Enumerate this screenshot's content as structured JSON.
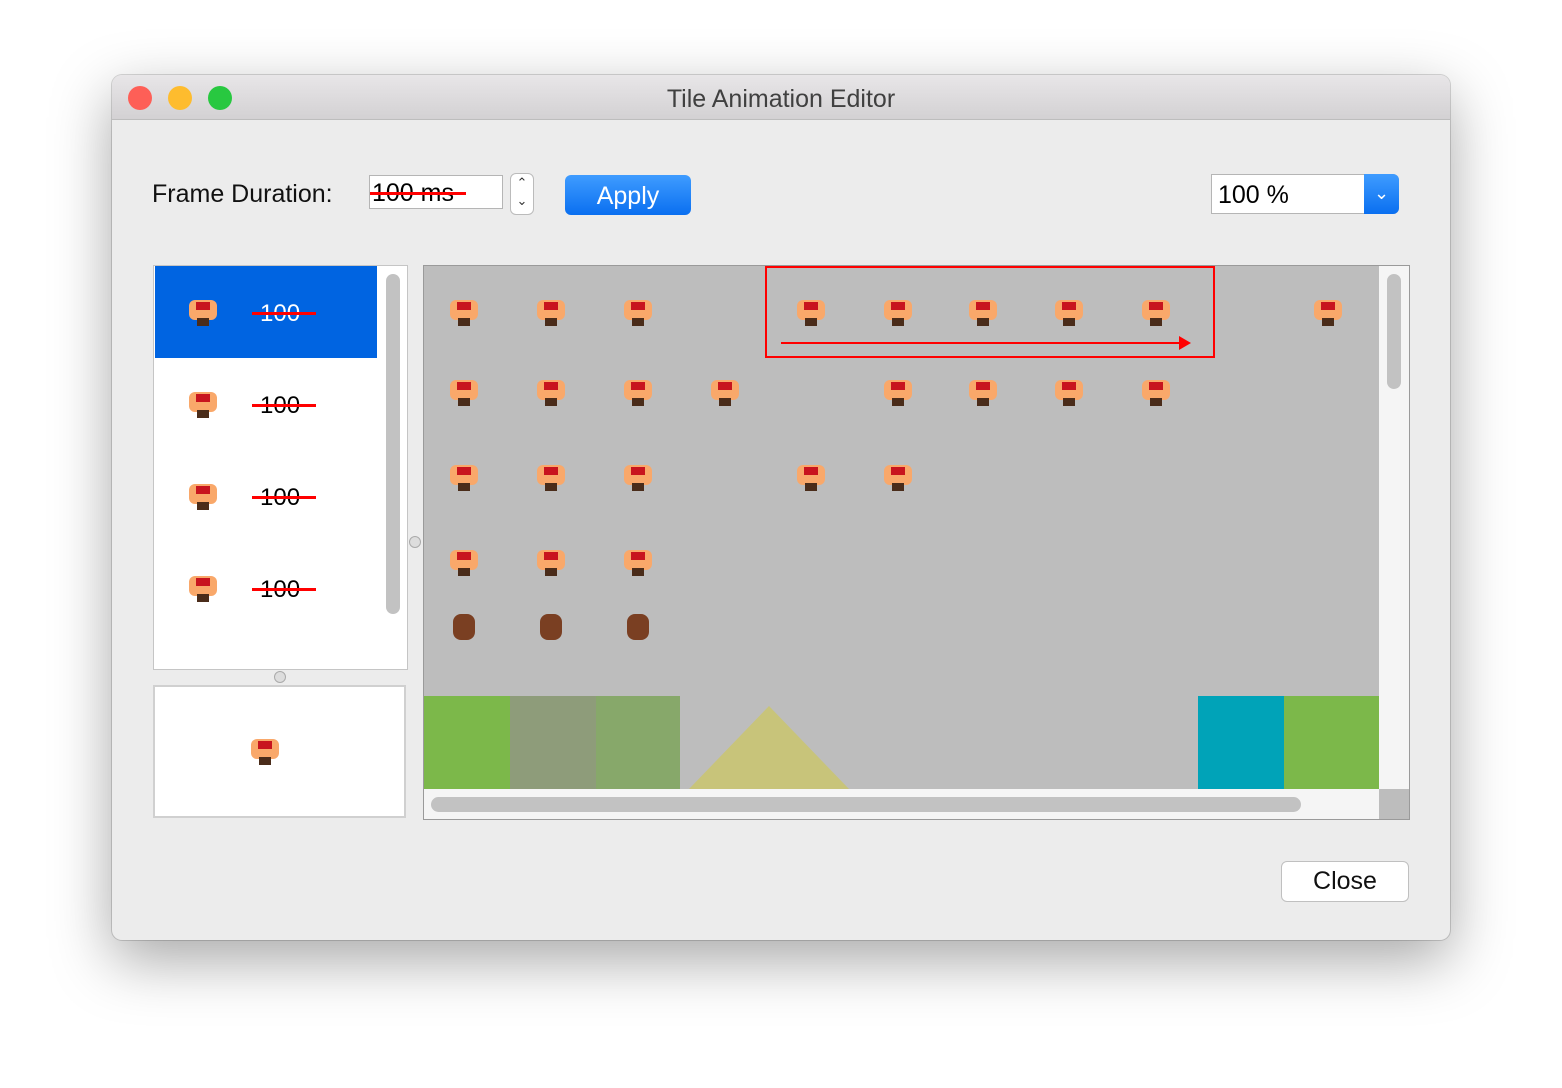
{
  "window": {
    "title": "Tile Animation Editor"
  },
  "toolbar": {
    "frame_duration_label": "Frame Duration:",
    "frame_duration_value": "100 ms",
    "apply_label": "Apply",
    "zoom_value": "100 %"
  },
  "frames": [
    {
      "duration": "100",
      "selected": true
    },
    {
      "duration": "100"
    },
    {
      "duration": "100"
    },
    {
      "duration": "100"
    }
  ],
  "footer": {
    "close_label": "Close"
  },
  "colors": {
    "accent": "#0a6ff0",
    "selection": "#0064e1",
    "annotation": "#ff0000",
    "tileset_bg": "#bdbdbd"
  }
}
